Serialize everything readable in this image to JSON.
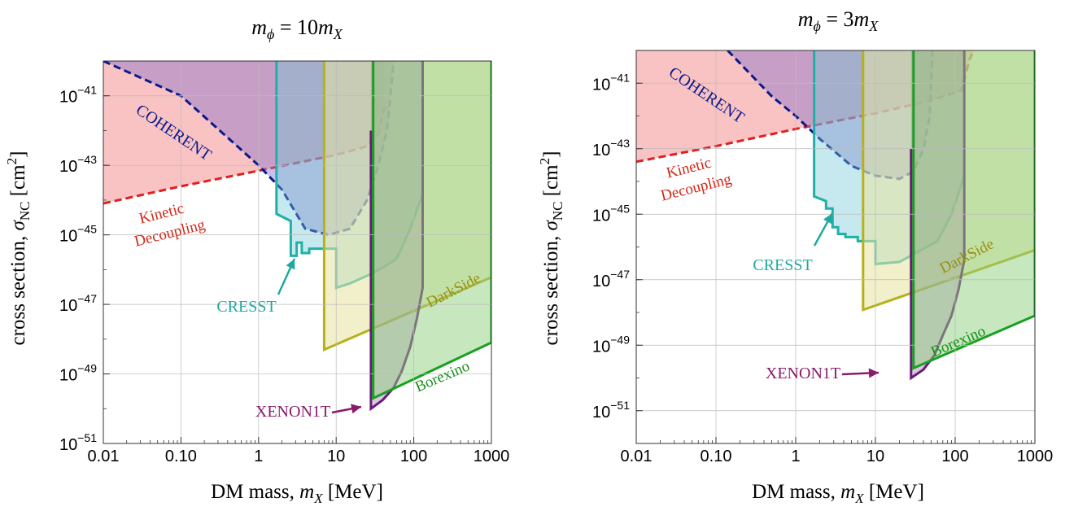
{
  "chart_data": [
    {
      "type": "area",
      "title": "m_φ = 10m_X",
      "title_parts": {
        "m": "m",
        "phi": "ϕ",
        "eq": " = 10",
        "x": "X"
      },
      "xlabel": "DM mass, m_X [MeV]",
      "xlabel_parts": {
        "pre": "DM mass, ",
        "m": "m",
        "x": "X",
        "post": " [MeV]"
      },
      "ylabel": "cross section, σ_NC [cm²]",
      "ylabel_parts": {
        "pre": "cross section, ",
        "sigma": "σ",
        "sub": "NC",
        "post": " [cm",
        "sup": "2",
        "end": "]"
      },
      "x_scale": "log",
      "y_scale": "log",
      "xlim": [
        0.01,
        1000
      ],
      "ylim": [
        1e-51,
        1e-40
      ],
      "x_ticks": [
        0.01,
        0.1,
        1,
        10,
        100,
        1000
      ],
      "x_tick_labels": [
        "0.01",
        "0.10",
        "1",
        "10",
        "100",
        "1000"
      ],
      "y_ticks": [
        1e-41,
        1e-43,
        1e-45,
        1e-47,
        1e-49,
        1e-51
      ],
      "y_tick_labels": [
        {
          "base": "10",
          "exp": "−41"
        },
        {
          "base": "10",
          "exp": "−43"
        },
        {
          "base": "10",
          "exp": "−45"
        },
        {
          "base": "10",
          "exp": "−47"
        },
        {
          "base": "10",
          "exp": "−49"
        },
        {
          "base": "10",
          "exp": "−51"
        }
      ],
      "grid": true,
      "series": [
        {
          "name": "Kinetic Decoupling",
          "color": "#e02020",
          "fill": "#f48888",
          "fill_opacity": 0.5,
          "dashed": true,
          "x": [
            0.01,
            0.1,
            1,
            10,
            25,
            35,
            42
          ],
          "y": [
            8e-45,
            2.5e-44,
            7e-44,
            2e-43,
            3.5e-43,
            8e-43,
            5e-42
          ]
        },
        {
          "name": "COHERENT",
          "color": "#0a1a8c",
          "fill": "#8a70c8",
          "fill_opacity": 0.45,
          "dashed": true,
          "x": [
            0.01,
            0.1,
            1,
            2,
            4,
            8,
            15,
            25,
            35,
            45,
            50,
            55
          ],
          "y": [
            1e-40,
            1e-41,
            1e-43,
            2e-44,
            1.5e-45,
            1e-45,
            1.5e-45,
            1e-44,
            1e-43,
            1e-42,
            1e-41,
            1e-40
          ]
        },
        {
          "name": "CRESST",
          "color": "#20b0a8",
          "fill": "#70c8d8",
          "fill_opacity": 0.4,
          "dashed": false,
          "x": [
            1.7,
            1.7,
            2.6,
            2.6,
            3.1,
            3.1,
            3.6,
            3.6,
            4.5,
            4.5,
            6.5,
            6.5,
            10,
            10,
            15,
            30,
            60,
            90,
            130
          ],
          "y": [
            1e-40,
            4e-45,
            2.5e-45,
            2.5e-46,
            2.5e-46,
            6e-46,
            6e-46,
            3e-46,
            3e-46,
            4e-46,
            4e-46,
            4e-46,
            4e-46,
            3e-47,
            4e-47,
            8e-47,
            2e-46,
            1.5e-45,
            1.5e-44
          ]
        },
        {
          "name": "DarkSide",
          "color": "#b8b018",
          "fill": "#e8e4a0",
          "fill_opacity": 0.55,
          "dashed": false,
          "x": [
            7,
            7,
            1000
          ],
          "y": [
            1e-40,
            5e-49,
            6e-47
          ]
        },
        {
          "name": "XENON1T",
          "color": "#6a1a7a",
          "fill": "#b080b0",
          "fill_opacity": 0.45,
          "dashed": false,
          "x": [
            28,
            28,
            40,
            55,
            70,
            90,
            110,
            130,
            130
          ],
          "y": [
            1e-42,
            1e-50,
            1.8e-50,
            4e-50,
            1.2e-49,
            6e-49,
            4e-48,
            3e-47,
            1e-40
          ]
        },
        {
          "name": "Borexino",
          "color": "#18a020",
          "fill": "#90d080",
          "fill_opacity": 0.5,
          "dashed": false,
          "x": [
            30,
            30,
            1000,
            1000
          ],
          "y": [
            1e-40,
            2e-50,
            8e-49,
            1e-40
          ]
        }
      ],
      "annotations": [
        {
          "text": "COHERENT",
          "color": "#0a1a8c"
        },
        {
          "text": "Kinetic",
          "color": "#d02818"
        },
        {
          "text": "Decoupling",
          "color": "#d02818"
        },
        {
          "text": "CRESST",
          "color": "#20a8a0"
        },
        {
          "text": "DarkSide",
          "color": "#9a9010"
        },
        {
          "text": "XENON1T",
          "color": "#8a1a6a"
        },
        {
          "text": "Borexino",
          "color": "#18901c"
        }
      ]
    },
    {
      "type": "area",
      "title": "m_φ = 3m_X",
      "title_parts": {
        "m": "m",
        "phi": "ϕ",
        "eq": " = 3",
        "x": "X"
      },
      "xlabel": "DM mass, m_X [MeV]",
      "xlabel_parts": {
        "pre": "DM mass, ",
        "m": "m",
        "x": "X",
        "post": " [MeV]"
      },
      "ylabel": "cross section, σ_NC [cm²]",
      "ylabel_parts": {
        "pre": "cross section, ",
        "sigma": "σ",
        "sub": "NC",
        "post": " [cm",
        "sup": "2",
        "end": "]"
      },
      "x_scale": "log",
      "y_scale": "log",
      "xlim": [
        0.01,
        1000
      ],
      "ylim": [
        1e-52,
        1e-40
      ],
      "x_ticks": [
        0.01,
        0.1,
        1,
        10,
        100,
        1000
      ],
      "x_tick_labels": [
        "0.01",
        "0.10",
        "1",
        "10",
        "100",
        "1000"
      ],
      "y_ticks": [
        1e-41,
        1e-43,
        1e-45,
        1e-47,
        1e-49,
        1e-51
      ],
      "y_tick_labels": [
        {
          "base": "10",
          "exp": "−41"
        },
        {
          "base": "10",
          "exp": "−43"
        },
        {
          "base": "10",
          "exp": "−45"
        },
        {
          "base": "10",
          "exp": "−47"
        },
        {
          "base": "10",
          "exp": "−49"
        },
        {
          "base": "10",
          "exp": "−51"
        }
      ],
      "grid": true,
      "series": [
        {
          "name": "Kinetic Decoupling",
          "color": "#e02020",
          "fill": "#f48888",
          "fill_opacity": 0.5,
          "dashed": true,
          "x": [
            0.01,
            0.1,
            1,
            10,
            50,
            120,
            150,
            170
          ],
          "y": [
            4e-44,
            1.2e-43,
            4e-43,
            1.2e-42,
            3e-42,
            6e-42,
            5e-41,
            1e-40
          ]
        },
        {
          "name": "COHERENT",
          "color": "#0a1a8c",
          "fill": "#8a70c8",
          "fill_opacity": 0.45,
          "dashed": true,
          "x": [
            0.14,
            0.5,
            1,
            2,
            5,
            10,
            20,
            30,
            40,
            48,
            52
          ],
          "y": [
            1e-40,
            4e-42,
            1e-42,
            2e-43,
            3e-44,
            1.5e-44,
            1.2e-44,
            2e-44,
            1e-43,
            1e-42,
            1e-40
          ]
        },
        {
          "name": "CRESST",
          "color": "#20b0a8",
          "fill": "#70c8d8",
          "fill_opacity": 0.4,
          "dashed": false,
          "x": [
            1.7,
            1.7,
            2.4,
            2.4,
            2.9,
            2.9,
            3.4,
            3.4,
            4.2,
            4.2,
            6,
            6,
            10,
            10,
            20,
            30,
            60,
            90,
            130
          ],
          "y": [
            1e-40,
            3.5e-45,
            2.5e-45,
            1.5e-45,
            1.5e-45,
            4e-46,
            4e-46,
            2.5e-46,
            2.5e-46,
            2e-46,
            2e-46,
            1.5e-46,
            1.5e-46,
            3e-47,
            3.5e-47,
            6e-47,
            1.5e-46,
            1e-45,
            1.5e-44
          ]
        },
        {
          "name": "DarkSide",
          "color": "#b8b018",
          "fill": "#e8e4a0",
          "fill_opacity": 0.55,
          "dashed": false,
          "x": [
            7,
            7,
            1000
          ],
          "y": [
            1e-40,
            1.2e-48,
            8e-47
          ]
        },
        {
          "name": "XENON1T",
          "color": "#6a1a7a",
          "fill": "#b080b0",
          "fill_opacity": 0.45,
          "dashed": false,
          "x": [
            28,
            28,
            40,
            55,
            70,
            90,
            110,
            130,
            130
          ],
          "y": [
            1e-43,
            1e-50,
            1.8e-50,
            5e-50,
            2e-49,
            8e-49,
            5e-48,
            4e-47,
            1e-40
          ]
        },
        {
          "name": "Borexino",
          "color": "#18a020",
          "fill": "#90d080",
          "fill_opacity": 0.5,
          "dashed": false,
          "x": [
            30,
            30,
            1000,
            1000
          ],
          "y": [
            1e-40,
            2e-50,
            8e-49,
            1e-40
          ]
        }
      ],
      "annotations": [
        {
          "text": "COHERENT",
          "color": "#0a1a8c"
        },
        {
          "text": "Kinetic",
          "color": "#d02818"
        },
        {
          "text": "Decoupling",
          "color": "#d02818"
        },
        {
          "text": "CRESST",
          "color": "#20a8a0"
        },
        {
          "text": "DarkSide",
          "color": "#9a9010"
        },
        {
          "text": "XENON1T",
          "color": "#8a1a6a"
        },
        {
          "text": "Borexino",
          "color": "#18901c"
        }
      ]
    }
  ]
}
